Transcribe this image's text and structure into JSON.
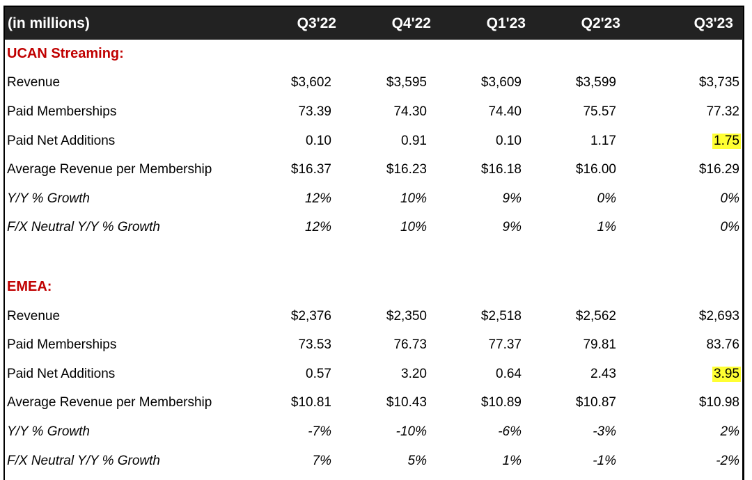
{
  "header": {
    "label": "(in millions)",
    "quarters": [
      "Q3'22",
      "Q4'22",
      "Q1'23",
      "Q2'23",
      "Q3'23"
    ]
  },
  "sections": [
    {
      "title": "UCAN Streaming:",
      "rows": [
        {
          "label": "Revenue",
          "values": [
            "$3,602",
            "$3,595",
            "$3,609",
            "$3,599",
            "$3,735"
          ],
          "italic": false
        },
        {
          "label": "Paid Memberships",
          "values": [
            "73.39",
            "74.30",
            "74.40",
            "75.57",
            "77.32"
          ],
          "italic": false
        },
        {
          "label": "Paid Net Additions",
          "values": [
            "0.10",
            "0.91",
            "0.10",
            "1.17",
            "1.75"
          ],
          "italic": false,
          "highlight_last": true
        },
        {
          "label": "Average Revenue per Membership",
          "values": [
            "$16.37",
            "$16.23",
            "$16.18",
            "$16.00",
            "$16.29"
          ],
          "italic": false
        },
        {
          "label": "Y/Y % Growth",
          "values": [
            "12%",
            "10%",
            "9%",
            "0%",
            "0%"
          ],
          "italic": true
        },
        {
          "label": "F/X Neutral Y/Y % Growth",
          "values": [
            "12%",
            "10%",
            "9%",
            "1%",
            "0%"
          ],
          "italic": true
        }
      ]
    },
    {
      "title": "EMEA:",
      "rows": [
        {
          "label": "Revenue",
          "values": [
            "$2,376",
            "$2,350",
            "$2,518",
            "$2,562",
            "$2,693"
          ],
          "italic": false
        },
        {
          "label": "Paid Memberships",
          "values": [
            "73.53",
            "76.73",
            "77.37",
            "79.81",
            "83.76"
          ],
          "italic": false
        },
        {
          "label": "Paid Net Additions",
          "values": [
            "0.57",
            "3.20",
            "0.64",
            "2.43",
            "3.95"
          ],
          "italic": false,
          "highlight_last": true
        },
        {
          "label": "Average Revenue per Membership",
          "values": [
            "$10.81",
            "$10.43",
            "$10.89",
            "$10.87",
            "$10.98"
          ],
          "italic": false
        },
        {
          "label": "Y/Y % Growth",
          "values": [
            "-7%",
            "-10%",
            "-6%",
            "-3%",
            "2%"
          ],
          "italic": true
        },
        {
          "label": "F/X Neutral Y/Y % Growth",
          "values": [
            "7%",
            "5%",
            "1%",
            "-1%",
            "-2%"
          ],
          "italic": true
        }
      ]
    }
  ],
  "colors": {
    "header_bg": "#222222",
    "section_title": "#c00000",
    "highlight": "#ffff33"
  }
}
